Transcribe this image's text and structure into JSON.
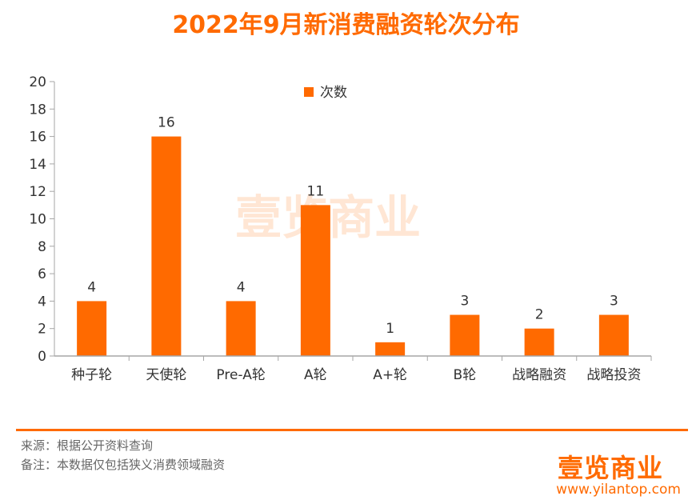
{
  "chart_data": {
    "type": "bar",
    "title": "2022年9月新消费融资轮次分布",
    "categories": [
      "种子轮",
      "天使轮",
      "Pre-A轮",
      "A轮",
      "A+轮",
      "B轮",
      "战略融资",
      "战略投资"
    ],
    "series": [
      {
        "name": "次数",
        "values": [
          4,
          16,
          4,
          11,
          1,
          3,
          2,
          3
        ],
        "color": "#ff6a00"
      }
    ],
    "ylim": [
      0,
      20
    ],
    "yticks": [
      0,
      2,
      4,
      6,
      8,
      10,
      12,
      14,
      16,
      18,
      20
    ],
    "xlabel": "",
    "ylabel": "",
    "grid": false,
    "legend_position": "top-center"
  },
  "watermark": "壹览商业",
  "footer": {
    "source": "来源：根据公开资料查询",
    "note": "备注：本数据仅包括狭义消费领域融资",
    "brand": "壹览商业",
    "url": "www.yilantop.com"
  },
  "colors": {
    "accent": "#ff6a00",
    "axis": "#a6a6a6",
    "text": "#333333"
  }
}
